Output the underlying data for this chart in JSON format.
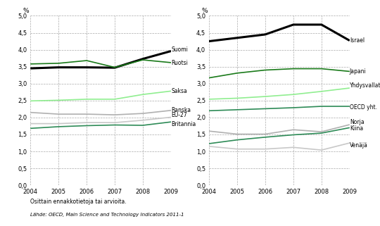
{
  "years": [
    2004,
    2005,
    2006,
    2007,
    2008,
    2009
  ],
  "left": {
    "Suomi": [
      3.45,
      3.48,
      3.48,
      3.47,
      3.73,
      3.96
    ],
    "Ruotsi": [
      3.58,
      3.6,
      3.68,
      3.48,
      3.7,
      3.62
    ],
    "Saksa": [
      2.49,
      2.51,
      2.54,
      2.54,
      2.68,
      2.78
    ],
    "Ranska": [
      2.15,
      2.1,
      2.1,
      2.08,
      2.12,
      2.21
    ],
    "EU-27": [
      1.82,
      1.82,
      1.85,
      1.85,
      1.92,
      2.01
    ],
    "Britannia": [
      1.68,
      1.73,
      1.76,
      1.78,
      1.77,
      1.87
    ]
  },
  "left_colors": {
    "Suomi": "#000000",
    "Ruotsi": "#1a7a1a",
    "Saksa": "#90EE90",
    "Ranska": "#b0b0b0",
    "EU-27": "#c8c8c8",
    "Britannia": "#2E8B57"
  },
  "left_linewidths": {
    "Suomi": 2.2,
    "Ruotsi": 1.2,
    "Saksa": 1.2,
    "Ranska": 1.2,
    "EU-27": 1.2,
    "Britannia": 1.2
  },
  "left_label_offsets": {
    "Suomi": 0.05,
    "Ruotsi": -0.01,
    "Saksa": 0.0,
    "Ranska": 0.0,
    "EU-27": 0.06,
    "Britannia": -0.06
  },
  "right": {
    "Israel": [
      4.25,
      4.35,
      4.45,
      4.74,
      4.74,
      4.27
    ],
    "Japani": [
      3.17,
      3.31,
      3.4,
      3.44,
      3.44,
      3.36
    ],
    "Yhdysvallat": [
      2.54,
      2.57,
      2.62,
      2.68,
      2.77,
      2.87
    ],
    "OECD yht.": [
      2.2,
      2.23,
      2.26,
      2.29,
      2.33,
      2.33
    ],
    "Norja": [
      1.6,
      1.51,
      1.51,
      1.64,
      1.58,
      1.79
    ],
    "Kiina": [
      1.23,
      1.34,
      1.42,
      1.49,
      1.54,
      1.7
    ],
    "Venäjä": [
      1.15,
      1.07,
      1.07,
      1.12,
      1.04,
      1.25
    ]
  },
  "right_colors": {
    "Israel": "#000000",
    "Japani": "#1a7a1a",
    "Yhdysvallat": "#90EE90",
    "OECD yht.": "#2E8B57",
    "Norja": "#b0b0b0",
    "Kiina": "#2E8B57",
    "Venäjä": "#c8c8c8"
  },
  "right_linewidths": {
    "Israel": 2.2,
    "Japani": 1.2,
    "Yhdysvallat": 1.2,
    "OECD yht.": 1.2,
    "Norja": 1.2,
    "Kiina": 1.2,
    "Venäjä": 1.2
  },
  "right_label_offsets": {
    "Israel": 0.0,
    "Japani": 0.0,
    "Yhdysvallat": 0.08,
    "OECD yht.": -0.03,
    "Norja": 0.07,
    "Kiina": -0.03,
    "Venäjä": -0.07
  },
  "ylim": [
    0.0,
    5.0
  ],
  "yticks": [
    0.0,
    0.5,
    1.0,
    1.5,
    2.0,
    2.5,
    3.0,
    3.5,
    4.0,
    4.5,
    5.0
  ],
  "ylabel": "%",
  "footnote1": "Osittain ennakkotietoja tai arvioita.",
  "footnote2": "Lähde: OECD, Main Science and Technology Indicators 2011-1"
}
